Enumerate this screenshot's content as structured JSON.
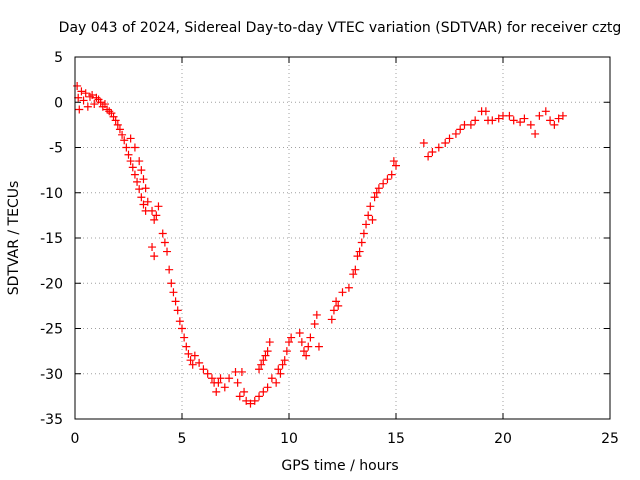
{
  "chart_data": {
    "type": "scatter",
    "title": "Day 043 of 2024, Sidereal Day-to-day VTEC variation (SDTVAR) for receiver cztg",
    "xlabel": "GPS time / hours",
    "ylabel": "SDTVAR / TECUs",
    "xlim": [
      0,
      25
    ],
    "ylim": [
      -35,
      5
    ],
    "xticks": [
      "0",
      "5",
      "10",
      "15",
      "20",
      "25"
    ],
    "yticks": [
      "5",
      "0",
      "-5",
      "-10",
      "-15",
      "-20",
      "-25",
      "-30",
      "-35"
    ],
    "grid": true,
    "marker": "+",
    "series": [
      {
        "name": "SDTVAR",
        "color": "#ff0000",
        "points": [
          [
            0.1,
            1.8
          ],
          [
            0.15,
            0.5
          ],
          [
            0.2,
            -0.8
          ],
          [
            0.3,
            1.2
          ],
          [
            0.4,
            0.2
          ],
          [
            0.5,
            1.0
          ],
          [
            0.6,
            -0.5
          ],
          [
            0.7,
            0.6
          ],
          [
            0.8,
            0.8
          ],
          [
            0.9,
            -0.2
          ],
          [
            1.0,
            0.5
          ],
          [
            1.1,
            0.3
          ],
          [
            1.2,
            0.0
          ],
          [
            1.3,
            -0.5
          ],
          [
            1.4,
            -0.2
          ],
          [
            1.5,
            -0.8
          ],
          [
            1.6,
            -1.0
          ],
          [
            1.7,
            -1.2
          ],
          [
            1.8,
            -1.6
          ],
          [
            1.9,
            -2.0
          ],
          [
            2.0,
            -2.5
          ],
          [
            2.1,
            -3.0
          ],
          [
            2.2,
            -3.6
          ],
          [
            2.3,
            -4.2
          ],
          [
            2.4,
            -5.0
          ],
          [
            2.5,
            -5.8
          ],
          [
            2.6,
            -6.5
          ],
          [
            2.7,
            -7.2
          ],
          [
            2.8,
            -8.0
          ],
          [
            2.9,
            -8.8
          ],
          [
            3.0,
            -9.6
          ],
          [
            3.1,
            -10.5
          ],
          [
            3.2,
            -11.3
          ],
          [
            3.3,
            -12.0
          ],
          [
            2.6,
            -4.0
          ],
          [
            2.8,
            -5.0
          ],
          [
            3.0,
            -6.5
          ],
          [
            3.1,
            -7.5
          ],
          [
            3.2,
            -8.5
          ],
          [
            3.3,
            -9.5
          ],
          [
            3.4,
            -11.0
          ],
          [
            3.6,
            -12.0
          ],
          [
            3.7,
            -13.0
          ],
          [
            3.8,
            -12.5
          ],
          [
            3.9,
            -11.5
          ],
          [
            3.6,
            -16.0
          ],
          [
            3.7,
            -17.0
          ],
          [
            4.1,
            -14.5
          ],
          [
            4.2,
            -15.5
          ],
          [
            4.3,
            -16.5
          ],
          [
            4.4,
            -18.5
          ],
          [
            4.5,
            -20.0
          ],
          [
            4.6,
            -21.0
          ],
          [
            4.7,
            -22.0
          ],
          [
            4.8,
            -23.0
          ],
          [
            4.9,
            -24.2
          ],
          [
            5.0,
            -25.0
          ],
          [
            5.1,
            -26.0
          ],
          [
            5.2,
            -27.0
          ],
          [
            5.3,
            -27.8
          ],
          [
            5.4,
            -28.5
          ],
          [
            5.5,
            -29.0
          ],
          [
            5.6,
            -28.0
          ],
          [
            5.8,
            -28.8
          ],
          [
            6.0,
            -29.5
          ],
          [
            6.2,
            -30.0
          ],
          [
            6.4,
            -30.5
          ],
          [
            6.5,
            -31.0
          ],
          [
            6.6,
            -32.0
          ],
          [
            6.7,
            -31.0
          ],
          [
            6.8,
            -30.5
          ],
          [
            7.0,
            -31.5
          ],
          [
            7.2,
            -30.5
          ],
          [
            7.5,
            -29.8
          ],
          [
            7.6,
            -31.0
          ],
          [
            7.7,
            -32.5
          ],
          [
            7.8,
            -29.8
          ],
          [
            7.9,
            -32.0
          ],
          [
            8.0,
            -33.0
          ],
          [
            8.2,
            -33.3
          ],
          [
            8.4,
            -33.0
          ],
          [
            8.6,
            -32.5
          ],
          [
            8.8,
            -32.0
          ],
          [
            9.0,
            -31.5
          ],
          [
            8.6,
            -29.5
          ],
          [
            8.7,
            -29.0
          ],
          [
            8.8,
            -28.5
          ],
          [
            8.9,
            -28.0
          ],
          [
            9.0,
            -27.5
          ],
          [
            9.1,
            -26.5
          ],
          [
            9.2,
            -30.5
          ],
          [
            9.4,
            -31.0
          ],
          [
            9.5,
            -29.5
          ],
          [
            9.6,
            -30.0
          ],
          [
            9.7,
            -29.0
          ],
          [
            9.8,
            -28.5
          ],
          [
            9.9,
            -27.5
          ],
          [
            10.0,
            -26.5
          ],
          [
            10.1,
            -26.0
          ],
          [
            10.5,
            -25.5
          ],
          [
            10.6,
            -26.5
          ],
          [
            10.7,
            -27.5
          ],
          [
            10.8,
            -28.0
          ],
          [
            10.9,
            -27.0
          ],
          [
            11.0,
            -26.0
          ],
          [
            11.2,
            -24.5
          ],
          [
            11.3,
            -23.5
          ],
          [
            11.4,
            -27.0
          ],
          [
            12.0,
            -24.0
          ],
          [
            12.1,
            -23.0
          ],
          [
            12.2,
            -22.0
          ],
          [
            12.3,
            -22.5
          ],
          [
            12.5,
            -21.0
          ],
          [
            12.8,
            -20.5
          ],
          [
            13.0,
            -19.0
          ],
          [
            13.1,
            -18.5
          ],
          [
            13.2,
            -17.0
          ],
          [
            13.3,
            -16.5
          ],
          [
            13.4,
            -15.5
          ],
          [
            13.5,
            -14.5
          ],
          [
            13.6,
            -13.5
          ],
          [
            13.7,
            -12.5
          ],
          [
            13.8,
            -11.5
          ],
          [
            13.9,
            -13.0
          ],
          [
            14.0,
            -10.5
          ],
          [
            14.1,
            -10.0
          ],
          [
            14.2,
            -9.5
          ],
          [
            14.4,
            -9.0
          ],
          [
            14.6,
            -8.5
          ],
          [
            14.8,
            -8.0
          ],
          [
            15.0,
            -7.0
          ],
          [
            14.9,
            -6.5
          ],
          [
            16.3,
            -4.5
          ],
          [
            16.5,
            -6.0
          ],
          [
            16.7,
            -5.5
          ],
          [
            17.0,
            -5.0
          ],
          [
            17.3,
            -4.5
          ],
          [
            17.5,
            -4.0
          ],
          [
            17.8,
            -3.5
          ],
          [
            18.0,
            -3.0
          ],
          [
            18.2,
            -2.5
          ],
          [
            18.5,
            -2.5
          ],
          [
            18.7,
            -2.0
          ],
          [
            19.0,
            -1.0
          ],
          [
            19.2,
            -1.0
          ],
          [
            19.3,
            -2.0
          ],
          [
            19.5,
            -2.0
          ],
          [
            19.8,
            -1.8
          ],
          [
            20.0,
            -1.5
          ],
          [
            20.3,
            -1.5
          ],
          [
            20.5,
            -2.0
          ],
          [
            20.8,
            -2.2
          ],
          [
            21.0,
            -1.8
          ],
          [
            21.3,
            -2.5
          ],
          [
            21.5,
            -3.5
          ],
          [
            21.7,
            -1.5
          ],
          [
            22.0,
            -1.0
          ],
          [
            22.2,
            -2.0
          ],
          [
            22.4,
            -2.5
          ],
          [
            22.6,
            -1.8
          ],
          [
            22.8,
            -1.5
          ]
        ]
      }
    ]
  }
}
